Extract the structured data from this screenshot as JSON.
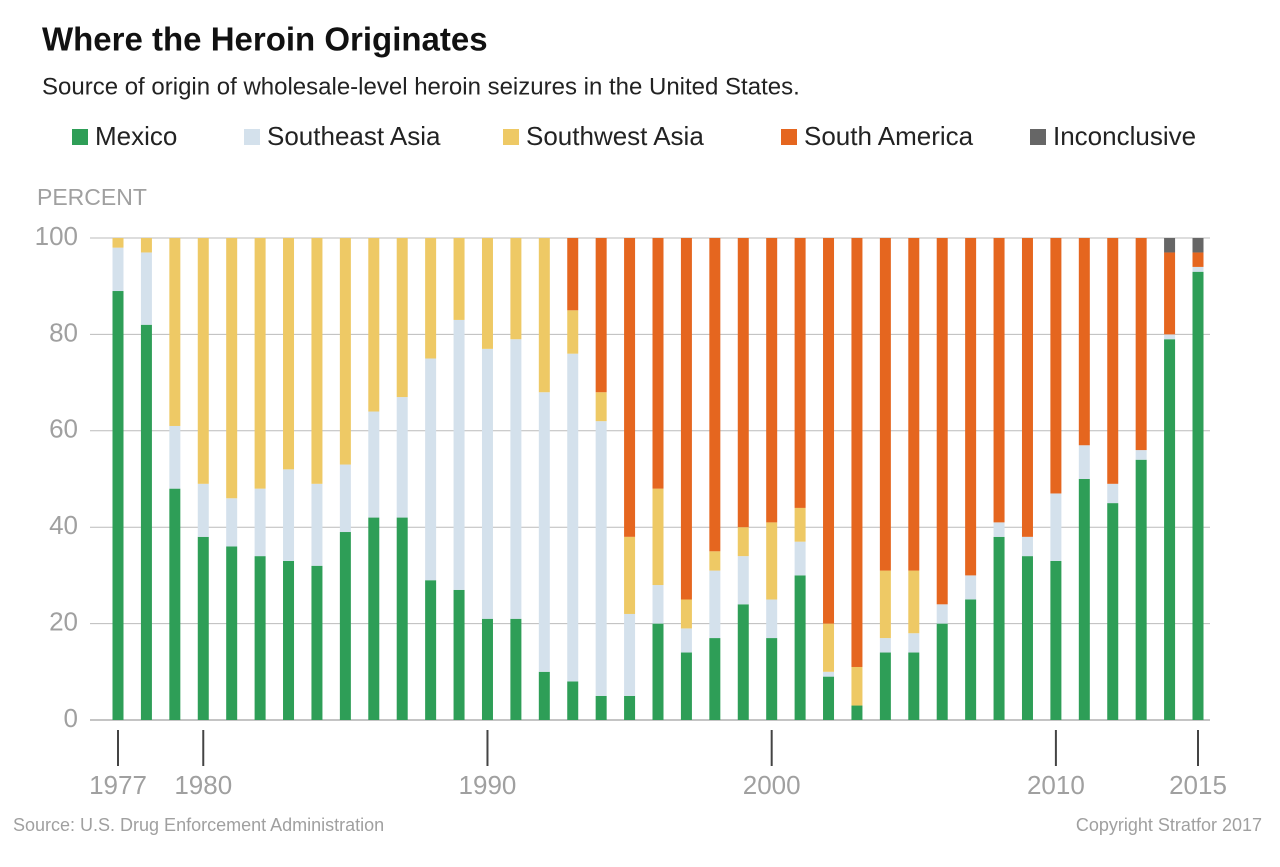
{
  "chart_data": {
    "type": "stacked-bar",
    "title": "Where the Heroin Originates",
    "subtitle": "Source of origin of wholesale-level heroin seizures in the United States.",
    "y_label": "PERCENT",
    "source": "Source: U.S. Drug Enforcement Administration",
    "copyright": "Copyright Stratfor 2017",
    "x": [
      1977,
      1978,
      1979,
      1980,
      1981,
      1982,
      1983,
      1984,
      1985,
      1986,
      1987,
      1988,
      1989,
      1990,
      1991,
      1992,
      1993,
      1994,
      1995,
      1996,
      1997,
      1998,
      1999,
      2000,
      2001,
      2002,
      2003,
      2004,
      2005,
      2006,
      2007,
      2008,
      2009,
      2010,
      2011,
      2012,
      2013,
      2014,
      2015
    ],
    "xlim": [
      1977,
      2015
    ],
    "xticks": [
      1977,
      1980,
      1990,
      2000,
      2010,
      2015
    ],
    "ylim": [
      0,
      100
    ],
    "yticks": [
      0,
      20,
      40,
      60,
      80,
      100
    ],
    "grid": true,
    "series": [
      {
        "name": "Mexico",
        "color": "#2e9e57",
        "values": [
          89,
          82,
          48,
          38,
          36,
          34,
          33,
          32,
          39,
          42,
          42,
          29,
          27,
          21,
          21,
          10,
          8,
          5,
          5,
          20,
          14,
          17,
          24,
          17,
          30,
          9,
          3,
          14,
          14,
          20,
          25,
          38,
          34,
          33,
          50,
          45,
          54,
          79,
          93
        ]
      },
      {
        "name": "Southeast Asia",
        "color": "#d4e1ec",
        "values": [
          9,
          15,
          13,
          11,
          10,
          14,
          19,
          17,
          14,
          22,
          25,
          46,
          56,
          56,
          58,
          58,
          68,
          57,
          17,
          8,
          5,
          14,
          10,
          8,
          7,
          1,
          0,
          3,
          4,
          4,
          5,
          3,
          4,
          14,
          7,
          4,
          2,
          1,
          1
        ]
      },
      {
        "name": "Southwest Asia",
        "color": "#eec965",
        "values": [
          2,
          3,
          39,
          51,
          54,
          52,
          48,
          51,
          47,
          36,
          33,
          25,
          17,
          23,
          21,
          32,
          9,
          6,
          16,
          20,
          6,
          4,
          6,
          16,
          7,
          10,
          8,
          14,
          13,
          0,
          0,
          0,
          0,
          0,
          0,
          0,
          0,
          0,
          0
        ]
      },
      {
        "name": "South America",
        "color": "#e5661f",
        "values": [
          0,
          0,
          0,
          0,
          0,
          0,
          0,
          0,
          0,
          0,
          0,
          0,
          0,
          0,
          0,
          0,
          15,
          32,
          62,
          52,
          75,
          65,
          60,
          59,
          56,
          80,
          89,
          69,
          69,
          76,
          70,
          59,
          62,
          53,
          43,
          51,
          44,
          17,
          3
        ]
      },
      {
        "name": "Inconclusive",
        "color": "#666666",
        "values": [
          0,
          0,
          0,
          0,
          0,
          0,
          0,
          0,
          0,
          0,
          0,
          0,
          0,
          0,
          0,
          0,
          0,
          0,
          0,
          0,
          0,
          0,
          0,
          0,
          0,
          0,
          0,
          0,
          0,
          0,
          0,
          0,
          0,
          0,
          0,
          0,
          0,
          3,
          3
        ]
      }
    ]
  }
}
